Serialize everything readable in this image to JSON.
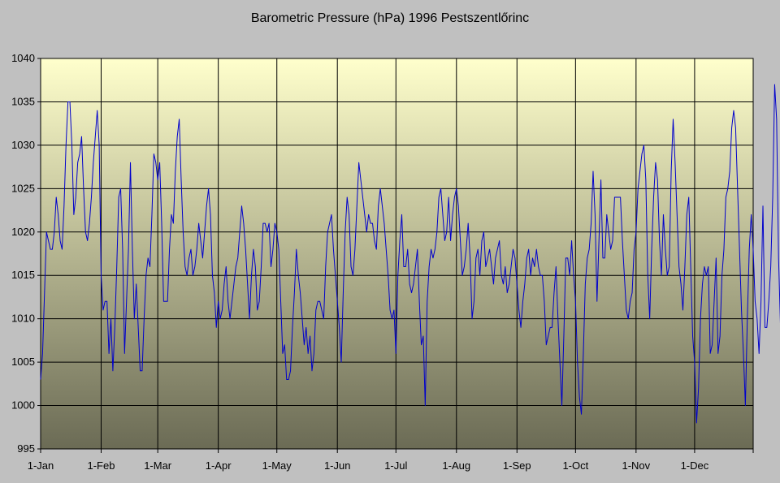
{
  "chart_data": {
    "type": "line",
    "title": "Barometric Pressure (hPa) 1996 Pestszentlőrinc",
    "xlabel": "",
    "ylabel": "",
    "ylim": [
      995,
      1040
    ],
    "yticks": [
      995,
      1000,
      1005,
      1010,
      1015,
      1020,
      1025,
      1030,
      1035,
      1040
    ],
    "xlim": [
      "1996-01-01",
      "1996-12-31"
    ],
    "xticks": [
      {
        "date": "1996-01-01",
        "label": "1-Jan"
      },
      {
        "date": "1996-02-01",
        "label": "1-Feb"
      },
      {
        "date": "1996-03-01",
        "label": "1-Mar"
      },
      {
        "date": "1996-04-01",
        "label": "1-Apr"
      },
      {
        "date": "1996-05-01",
        "label": "1-May"
      },
      {
        "date": "1996-06-01",
        "label": "1-Jun"
      },
      {
        "date": "1996-07-01",
        "label": "1-Jul"
      },
      {
        "date": "1996-08-01",
        "label": "1-Aug"
      },
      {
        "date": "1996-09-01",
        "label": "1-Sep"
      },
      {
        "date": "1996-10-01",
        "label": "1-Oct"
      },
      {
        "date": "1996-11-01",
        "label": "1-Nov"
      },
      {
        "date": "1996-12-01",
        "label": "1-Dec"
      }
    ],
    "grid": true,
    "legend": "none",
    "colors": {
      "line": "#0000cc",
      "plot_top": "#ffffcc",
      "plot_bottom": "#6b6b55",
      "background": "#c0c0c0",
      "grid": "#000000"
    },
    "series": [
      {
        "x_start": "1996-01-01",
        "x_step_days": 1,
        "values": [
          1003,
          1006,
          1013,
          1020,
          1019,
          1018,
          1018,
          1020,
          1024,
          1022,
          1019,
          1018,
          1023,
          1030,
          1035,
          1035,
          1030,
          1022,
          1024,
          1028,
          1029,
          1031,
          1025,
          1020,
          1019,
          1021,
          1024,
          1028,
          1031,
          1034,
          1030,
          1015,
          1011,
          1012,
          1012,
          1006,
          1010,
          1004,
          1009,
          1016,
          1024,
          1025,
          1018,
          1006,
          1012,
          1018,
          1028,
          1018,
          1010,
          1014,
          1009,
          1004,
          1004,
          1010,
          1015,
          1017,
          1016,
          1022,
          1029,
          1028,
          1026,
          1028,
          1021,
          1012,
          1012,
          1012,
          1018,
          1022,
          1021,
          1027,
          1031,
          1033,
          1026,
          1020,
          1016,
          1015,
          1017,
          1018,
          1015,
          1016,
          1018,
          1021,
          1019,
          1017,
          1020,
          1023,
          1025,
          1022,
          1015,
          1013,
          1009,
          1012,
          1010,
          1011,
          1014,
          1016,
          1012,
          1010,
          1012,
          1014,
          1016,
          1017,
          1020,
          1023,
          1021,
          1018,
          1014,
          1010,
          1015,
          1018,
          1016,
          1011,
          1012,
          1016,
          1021,
          1021,
          1020,
          1021,
          1016,
          1018,
          1021,
          1020,
          1018,
          1012,
          1006,
          1007,
          1003,
          1003,
          1004,
          1009,
          1013,
          1018,
          1015,
          1013,
          1010,
          1007,
          1009,
          1006,
          1008,
          1004,
          1006,
          1011,
          1012,
          1012,
          1011,
          1010,
          1016,
          1020,
          1021,
          1022,
          1018,
          1015,
          1012,
          1009,
          1005,
          1013,
          1020,
          1024,
          1022,
          1016,
          1015,
          1018,
          1023,
          1028,
          1026,
          1024,
          1022,
          1020,
          1022,
          1021,
          1021,
          1019,
          1018,
          1023,
          1025,
          1023,
          1021,
          1018,
          1015,
          1011,
          1010,
          1011,
          1006,
          1015,
          1019,
          1022,
          1016,
          1016,
          1018,
          1014,
          1013,
          1014,
          1016,
          1018,
          1012,
          1007,
          1008,
          1000,
          1012,
          1016,
          1018,
          1017,
          1018,
          1020,
          1024,
          1025,
          1022,
          1019,
          1020,
          1024,
          1019,
          1022,
          1024,
          1025,
          1023,
          1019,
          1015,
          1016,
          1018,
          1021,
          1017,
          1010,
          1012,
          1017,
          1018,
          1015,
          1019,
          1020,
          1016,
          1017,
          1018,
          1016,
          1014,
          1017,
          1018,
          1019,
          1015,
          1014,
          1016,
          1013,
          1014,
          1016,
          1018,
          1017,
          1014,
          1011,
          1009,
          1012,
          1014,
          1017,
          1018,
          1015,
          1017,
          1016,
          1018,
          1016,
          1015,
          1015,
          1012,
          1007,
          1008,
          1009,
          1009,
          1013,
          1016,
          1010,
          1005,
          1000,
          1008,
          1017,
          1017,
          1015,
          1019,
          1015,
          1012,
          1005,
          1001,
          999,
          1006,
          1014,
          1017,
          1018,
          1021,
          1027,
          1022,
          1012,
          1019,
          1026,
          1017,
          1017,
          1022,
          1020,
          1018,
          1019,
          1024,
          1024,
          1024,
          1024,
          1019,
          1015,
          1011,
          1010,
          1012,
          1013,
          1018,
          1020,
          1025,
          1027,
          1029,
          1030,
          1026,
          1015,
          1010,
          1018,
          1024,
          1028,
          1026,
          1019,
          1015,
          1022,
          1018,
          1015,
          1016,
          1027,
          1033,
          1028,
          1022,
          1016,
          1014,
          1011,
          1016,
          1022,
          1024,
          1016,
          1008,
          1005,
          998,
          1002,
          1010,
          1014,
          1016,
          1015,
          1016,
          1006,
          1007,
          1012,
          1017,
          1006,
          1008,
          1015,
          1018,
          1024,
          1025,
          1027,
          1032,
          1034,
          1032,
          1025,
          1018,
          1011,
          1006,
          1000,
          1010,
          1018,
          1022,
          1018,
          1012,
          1010,
          1006,
          1012,
          1023,
          1009,
          1009,
          1012,
          1016,
          1024,
          1037,
          1033,
          1017,
          1009,
          1014,
          1019
        ]
      }
    ]
  }
}
